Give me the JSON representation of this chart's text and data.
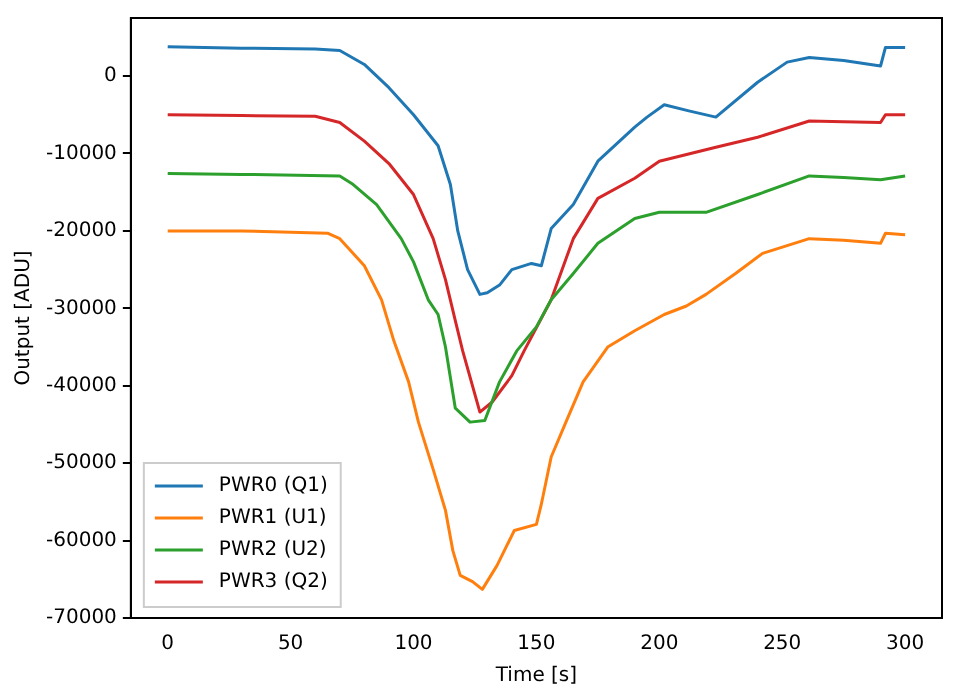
{
  "chart_data": {
    "type": "line",
    "xlabel": "Time [s]",
    "ylabel": "Output [ADU]",
    "xlim": [
      -15,
      315
    ],
    "ylim": [
      -70000,
      7500
    ],
    "xticks": [
      0,
      50,
      100,
      150,
      200,
      250,
      300
    ],
    "yticks": [
      -70000,
      -60000,
      -50000,
      -40000,
      -30000,
      -20000,
      -10000,
      0
    ],
    "grid": false,
    "legend": "bottom left",
    "marker": "none",
    "line_style": "solid",
    "series": [
      {
        "name": "PWR0 (Q1)",
        "color": "#1f77b4",
        "x": [
          0,
          30,
          60,
          70,
          80,
          90,
          100,
          110,
          115,
          118,
          122,
          127,
          130,
          135,
          140,
          148,
          152,
          156,
          165,
          175,
          190,
          195,
          202,
          212,
          223,
          240,
          252,
          261,
          275,
          290,
          292,
          300
        ],
        "values": [
          3800,
          3600,
          3500,
          3300,
          1500,
          -1500,
          -5000,
          -9000,
          -14000,
          -20000,
          -25000,
          -28200,
          -28000,
          -27000,
          -25000,
          -24200,
          -24500,
          -19700,
          -16600,
          -11000,
          -6600,
          -5300,
          -3700,
          -4500,
          -5300,
          -800,
          1800,
          2400,
          2000,
          1300,
          3700,
          3700
        ]
      },
      {
        "name": "PWR1 (U1)",
        "color": "#ff7f0e",
        "x": [
          0,
          30,
          65,
          70,
          80,
          87,
          92,
          98,
          102,
          108,
          113,
          116,
          119,
          124,
          128,
          134,
          141,
          150,
          152,
          156,
          162,
          169,
          179,
          190,
          202,
          211,
          219,
          231,
          242,
          261,
          275,
          290,
          292,
          300
        ],
        "values": [
          -20000,
          -20000,
          -20300,
          -21000,
          -24500,
          -28900,
          -34200,
          -39500,
          -44700,
          -50800,
          -56100,
          -61300,
          -64500,
          -65300,
          -66300,
          -63200,
          -58700,
          -57900,
          -55300,
          -49200,
          -44700,
          -39500,
          -35000,
          -32900,
          -30800,
          -29700,
          -28200,
          -25500,
          -22900,
          -21000,
          -21200,
          -21600,
          -20300,
          -20500
        ]
      },
      {
        "name": "PWR2 (U2)",
        "color": "#2ca02c",
        "x": [
          0,
          30,
          70,
          75,
          85,
          95,
          100,
          106,
          110,
          113,
          117,
          123,
          129,
          135,
          142,
          150,
          156,
          165,
          175,
          190,
          200,
          219,
          240,
          261,
          275,
          290,
          300
        ],
        "values": [
          -12600,
          -12700,
          -12900,
          -13900,
          -16600,
          -21000,
          -24000,
          -28900,
          -30800,
          -35000,
          -42900,
          -44700,
          -44500,
          -39500,
          -35500,
          -32400,
          -28900,
          -25500,
          -21600,
          -18400,
          -17600,
          -17600,
          -15300,
          -12900,
          -13100,
          -13400,
          -12900
        ]
      },
      {
        "name": "PWR3 (Q2)",
        "color": "#d62728",
        "x": [
          0,
          30,
          60,
          70,
          80,
          90,
          100,
          108,
          113,
          117,
          120,
          127,
          132,
          140,
          145,
          156,
          165,
          175,
          190,
          200,
          223,
          240,
          261,
          275,
          290,
          292,
          300
        ],
        "values": [
          -5000,
          -5100,
          -5200,
          -6000,
          -8400,
          -11300,
          -15300,
          -21000,
          -26300,
          -31600,
          -35500,
          -43400,
          -42100,
          -38700,
          -35500,
          -28900,
          -21000,
          -15800,
          -13200,
          -11000,
          -9200,
          -7900,
          -5800,
          -5900,
          -6000,
          -5000,
          -5000
        ]
      }
    ]
  }
}
